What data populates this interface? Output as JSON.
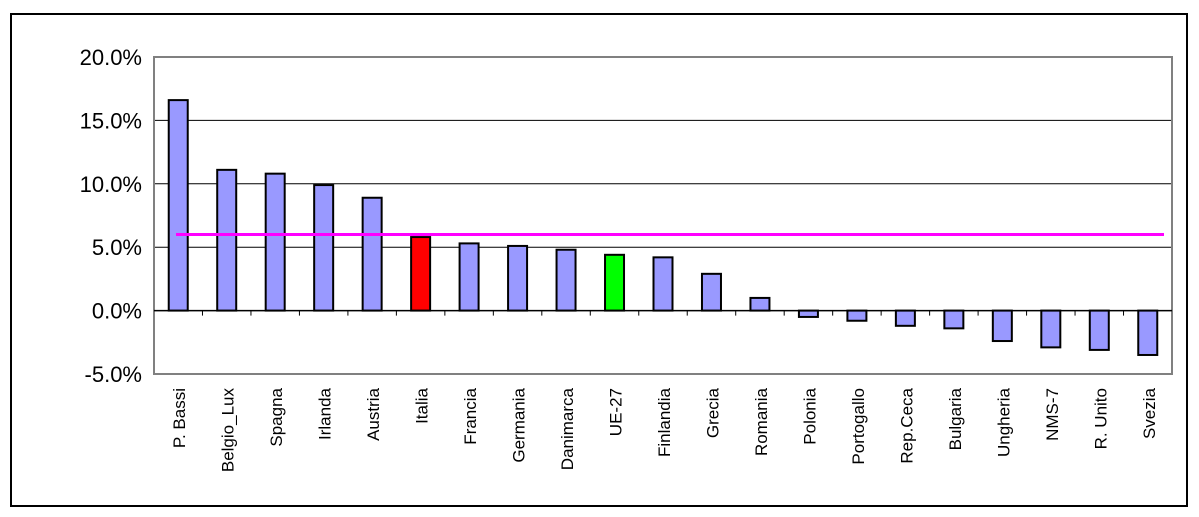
{
  "chart_data": {
    "type": "bar",
    "title": "",
    "xlabel": "",
    "ylabel": "",
    "ylim": [
      -5.0,
      20.0
    ],
    "yticks": [
      -5.0,
      0.0,
      5.0,
      10.0,
      15.0,
      20.0
    ],
    "ytick_labels": [
      "-5.0%",
      "0.0%",
      "5.0%",
      "10.0%",
      "15.0%",
      "20.0%"
    ],
    "grid": true,
    "categories": [
      "P. Bassi",
      "Belgio_Lux",
      "Spagna",
      "Irlanda",
      "Austria",
      "Italia",
      "Francia",
      "Germania",
      "Danimarca",
      "UE-27",
      "Finlandia",
      "Grecia",
      "Romania",
      "Polonia",
      "Portogallo",
      "Rep.Ceca",
      "Bulgaria",
      "Ungheria",
      "NMS-7",
      "R. Unito",
      "Svezia"
    ],
    "values": [
      16.6,
      11.1,
      10.8,
      9.9,
      8.9,
      5.8,
      5.3,
      5.1,
      4.8,
      4.4,
      4.2,
      2.9,
      1.0,
      -0.5,
      -0.8,
      -1.2,
      -1.4,
      -2.4,
      -2.9,
      -3.1,
      -3.5
    ],
    "bar_colors": [
      "#9999ff",
      "#9999ff",
      "#9999ff",
      "#9999ff",
      "#9999ff",
      "#ff0000",
      "#9999ff",
      "#9999ff",
      "#9999ff",
      "#00ff00",
      "#9999ff",
      "#9999ff",
      "#9999ff",
      "#9999ff",
      "#9999ff",
      "#9999ff",
      "#9999ff",
      "#9999ff",
      "#9999ff",
      "#9999ff",
      "#9999ff"
    ],
    "reference_line": {
      "value": 6.0,
      "color": "#ff00ff"
    }
  }
}
